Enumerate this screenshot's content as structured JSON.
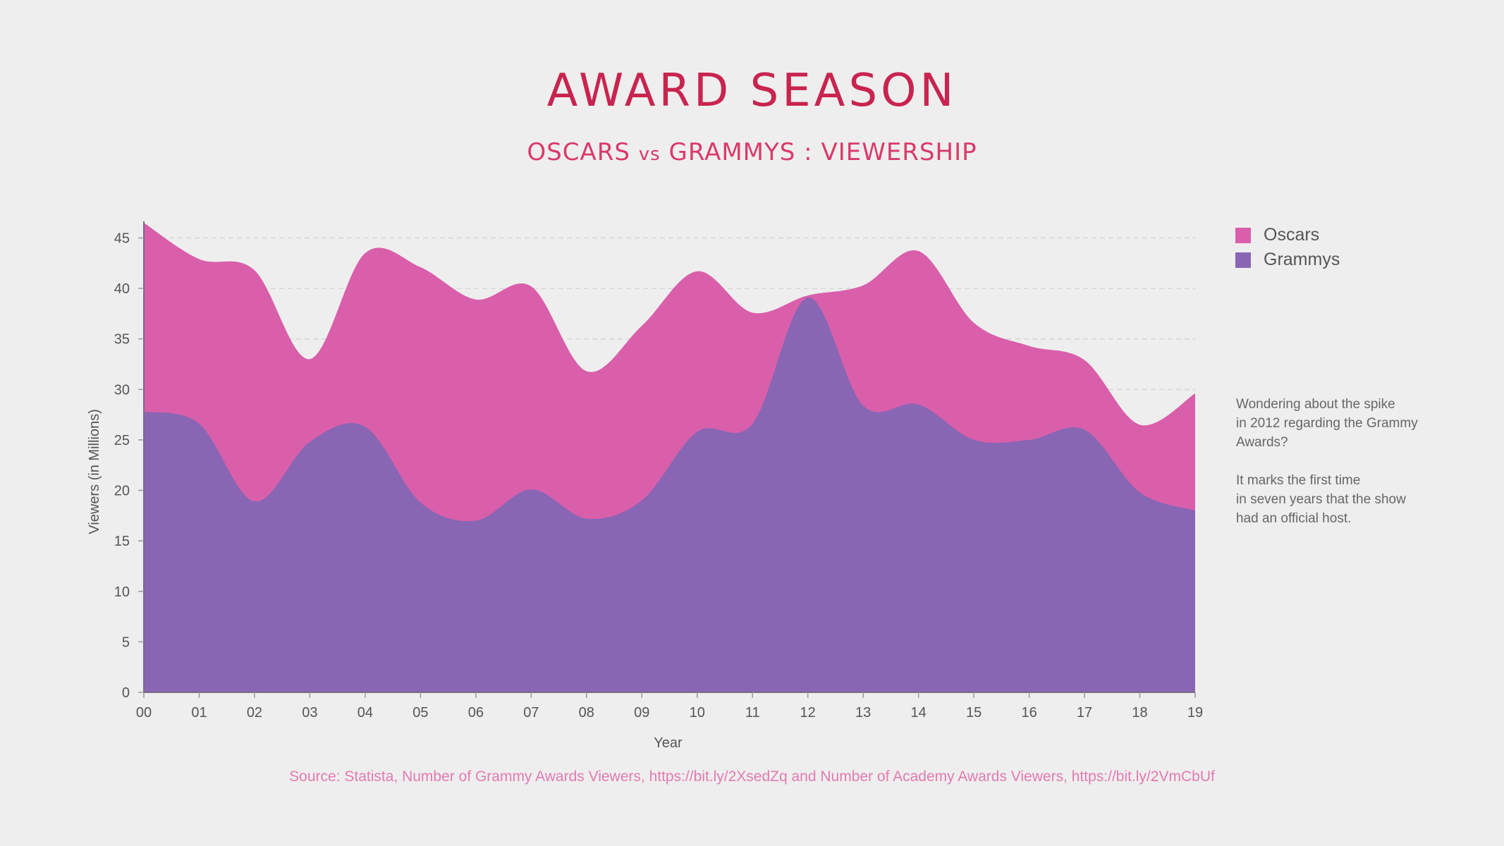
{
  "header": {
    "title": "AWARD SEASON",
    "subtitle_left": "OSCARS",
    "subtitle_vs": "vs",
    "subtitle_right": "GRAMMYS : VIEWERSHIP"
  },
  "legend": [
    {
      "label": "Oscars",
      "color": "#d95fab"
    },
    {
      "label": "Grammys",
      "color": "#8866b4"
    }
  ],
  "note": {
    "paragraph1": "Wondering about the spike\nin 2012 regarding the Grammy\nAwards?",
    "paragraph2": "It marks the first time\nin seven years that the show\nhad an official host."
  },
  "source": "Source: Statista, Number of Grammy Awards Viewers, https://bit.ly/2XsedZq and Number of Academy Awards Viewers, https://bit.ly/2VmCbUf",
  "chart_data": {
    "type": "area",
    "xlabel": "Year",
    "ylabel": "Viewers (in Millions)",
    "categories": [
      "00",
      "01",
      "02",
      "03",
      "04",
      "05",
      "06",
      "07",
      "08",
      "09",
      "10",
      "11",
      "12",
      "13",
      "14",
      "15",
      "16",
      "17",
      "18",
      "19"
    ],
    "ylim": [
      0,
      45
    ],
    "yticks": [
      0,
      5,
      10,
      15,
      20,
      25,
      30,
      35,
      40,
      45
    ],
    "grid": "horizontal dashed",
    "legend_position": "top-right",
    "series": [
      {
        "name": "Oscars",
        "color": "#d95fab",
        "values": [
          46.5,
          42.9,
          41.8,
          33.0,
          43.5,
          42.1,
          38.9,
          40.2,
          31.8,
          36.3,
          41.7,
          37.6,
          39.3,
          40.3,
          43.7,
          36.6,
          34.3,
          32.9,
          26.5,
          29.6
        ]
      },
      {
        "name": "Grammys",
        "color": "#8866b4",
        "values": [
          27.8,
          26.6,
          18.9,
          24.8,
          26.3,
          18.8,
          17.0,
          20.1,
          17.2,
          19.0,
          25.8,
          26.6,
          39.1,
          28.4,
          28.5,
          25.0,
          25.0,
          26.0,
          19.8,
          18.0
        ]
      }
    ]
  }
}
